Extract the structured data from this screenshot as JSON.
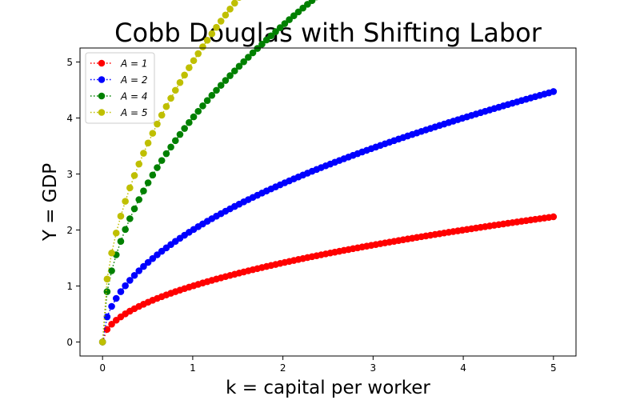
{
  "chart_data": {
    "type": "line",
    "title": "Cobb Douglas with Shifting Labor",
    "xlabel": "k = capital per worker",
    "ylabel": "Y = GDP",
    "xlim": [
      -0.25,
      5.25
    ],
    "ylim": [
      -0.25,
      5.25
    ],
    "xticks": [
      0,
      1,
      2,
      3,
      4,
      5
    ],
    "yticks": [
      0,
      1,
      2,
      3,
      4,
      5
    ],
    "grid": false,
    "legend_position": "top-left",
    "model": "Y = A * k^0.5",
    "x_start": 0,
    "x_end": 5,
    "num_points": 100,
    "series": [
      {
        "name": "A = 1",
        "A": 1,
        "color": "#ff0000",
        "line_style": "dotted",
        "marker": "circle"
      },
      {
        "name": "A = 2",
        "A": 2,
        "color": "#0000ff",
        "line_style": "dotted",
        "marker": "circle"
      },
      {
        "name": "A = 4",
        "A": 4,
        "color": "#008000",
        "line_style": "dotted",
        "marker": "circle"
      },
      {
        "name": "A = 5",
        "A": 5,
        "color": "#bfbf00",
        "line_style": "dotted",
        "marker": "circle"
      }
    ]
  }
}
